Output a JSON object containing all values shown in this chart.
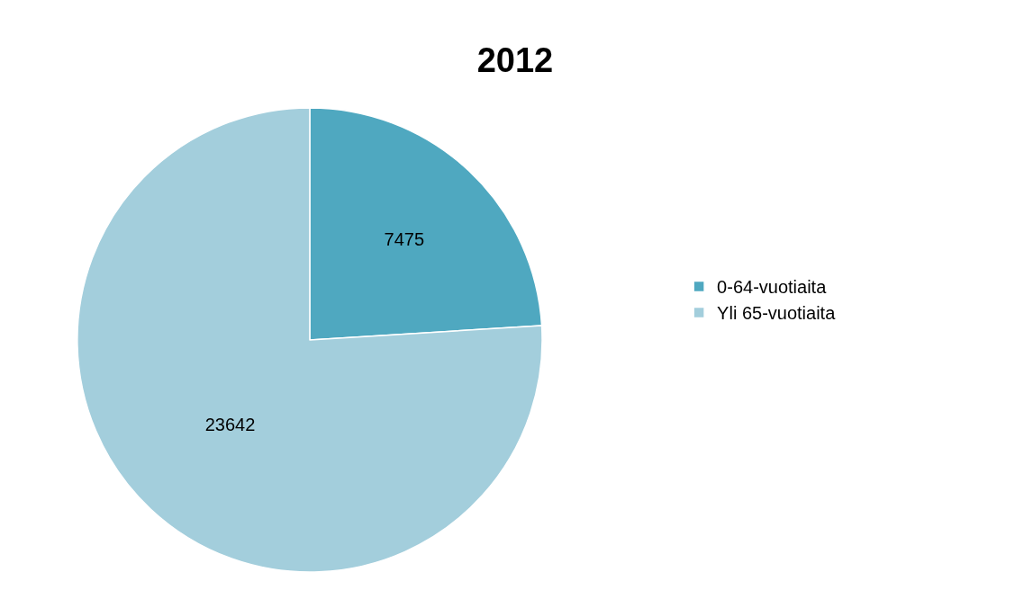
{
  "chart_data": {
    "type": "pie",
    "title": "2012",
    "categories": [
      "0-64-vuotiaita",
      "Yli 65-vuotiaita"
    ],
    "values": [
      7475,
      23642
    ],
    "colors": [
      "#4fa8c0",
      "#a3cedc"
    ],
    "data_labels": true,
    "legend": "right"
  }
}
